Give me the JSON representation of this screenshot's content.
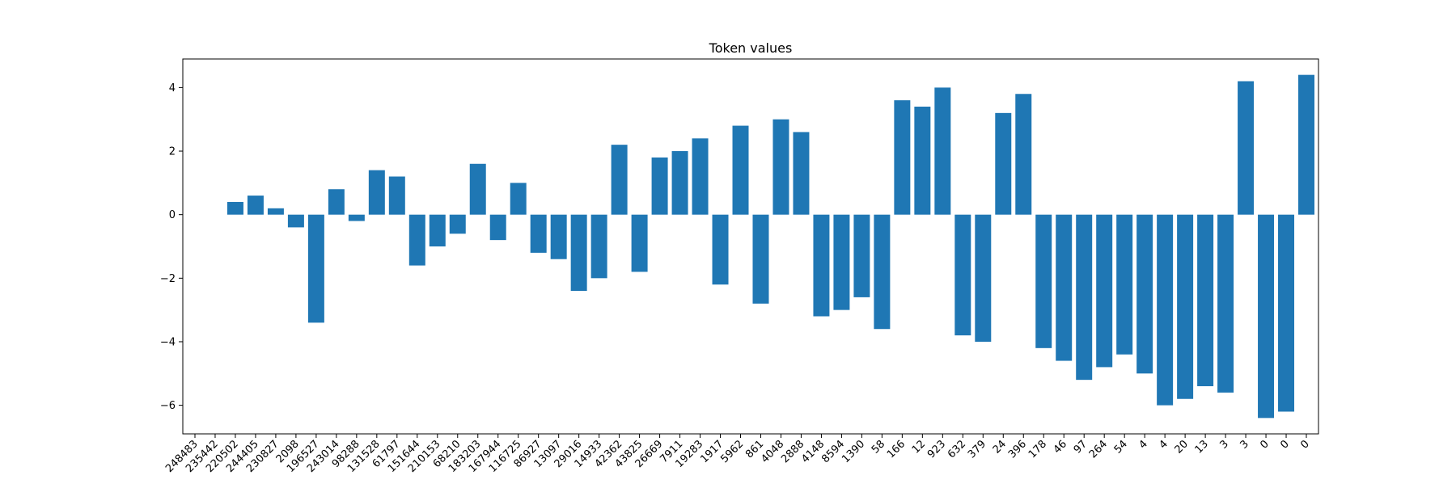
{
  "chart_data": {
    "type": "bar",
    "title": "Token values",
    "xlabel": "",
    "ylabel": "",
    "categories": [
      "248483",
      "235442",
      "220502",
      "244405",
      "230827",
      "2098",
      "196527",
      "243014",
      "98288",
      "131528",
      "61797",
      "151644",
      "210153",
      "68210",
      "183203",
      "167944",
      "116725",
      "86927",
      "13097",
      "29016",
      "14933",
      "42362",
      "43825",
      "26669",
      "7911",
      "19283",
      "1917",
      "5962",
      "861",
      "4048",
      "2888",
      "4148",
      "8594",
      "1390",
      "58",
      "166",
      "12",
      "923",
      "632",
      "379",
      "24",
      "396",
      "178",
      "46",
      "97",
      "264",
      "54",
      "4",
      "4",
      "20",
      "13",
      "3",
      "3",
      "0",
      "0",
      "0"
    ],
    "values": [
      0.0,
      0.0,
      0.4,
      0.6,
      0.2,
      -0.4,
      -3.4,
      0.8,
      -0.2,
      1.4,
      1.2,
      -1.6,
      -1.0,
      -0.6,
      1.6,
      -0.8,
      1.0,
      -1.2,
      -1.4,
      -2.4,
      -2.0,
      2.2,
      -1.8,
      1.8,
      2.0,
      2.4,
      -2.2,
      2.8,
      -2.8,
      3.0,
      2.6,
      -3.2,
      -3.0,
      -2.6,
      -3.6,
      3.6,
      3.4,
      4.0,
      -3.8,
      -4.0,
      3.2,
      3.8,
      -4.2,
      -4.6,
      -5.2,
      -4.8,
      -4.4,
      -5.0,
      -6.0,
      -5.8,
      -5.4,
      -5.6,
      4.2,
      -6.4,
      -6.2,
      4.4
    ],
    "ylim": [
      -6.9,
      4.9
    ],
    "yticks": [
      -6,
      -4,
      -2,
      0,
      2,
      4
    ],
    "bar_color": "#1f77b4",
    "grid": false,
    "legend": "none"
  }
}
